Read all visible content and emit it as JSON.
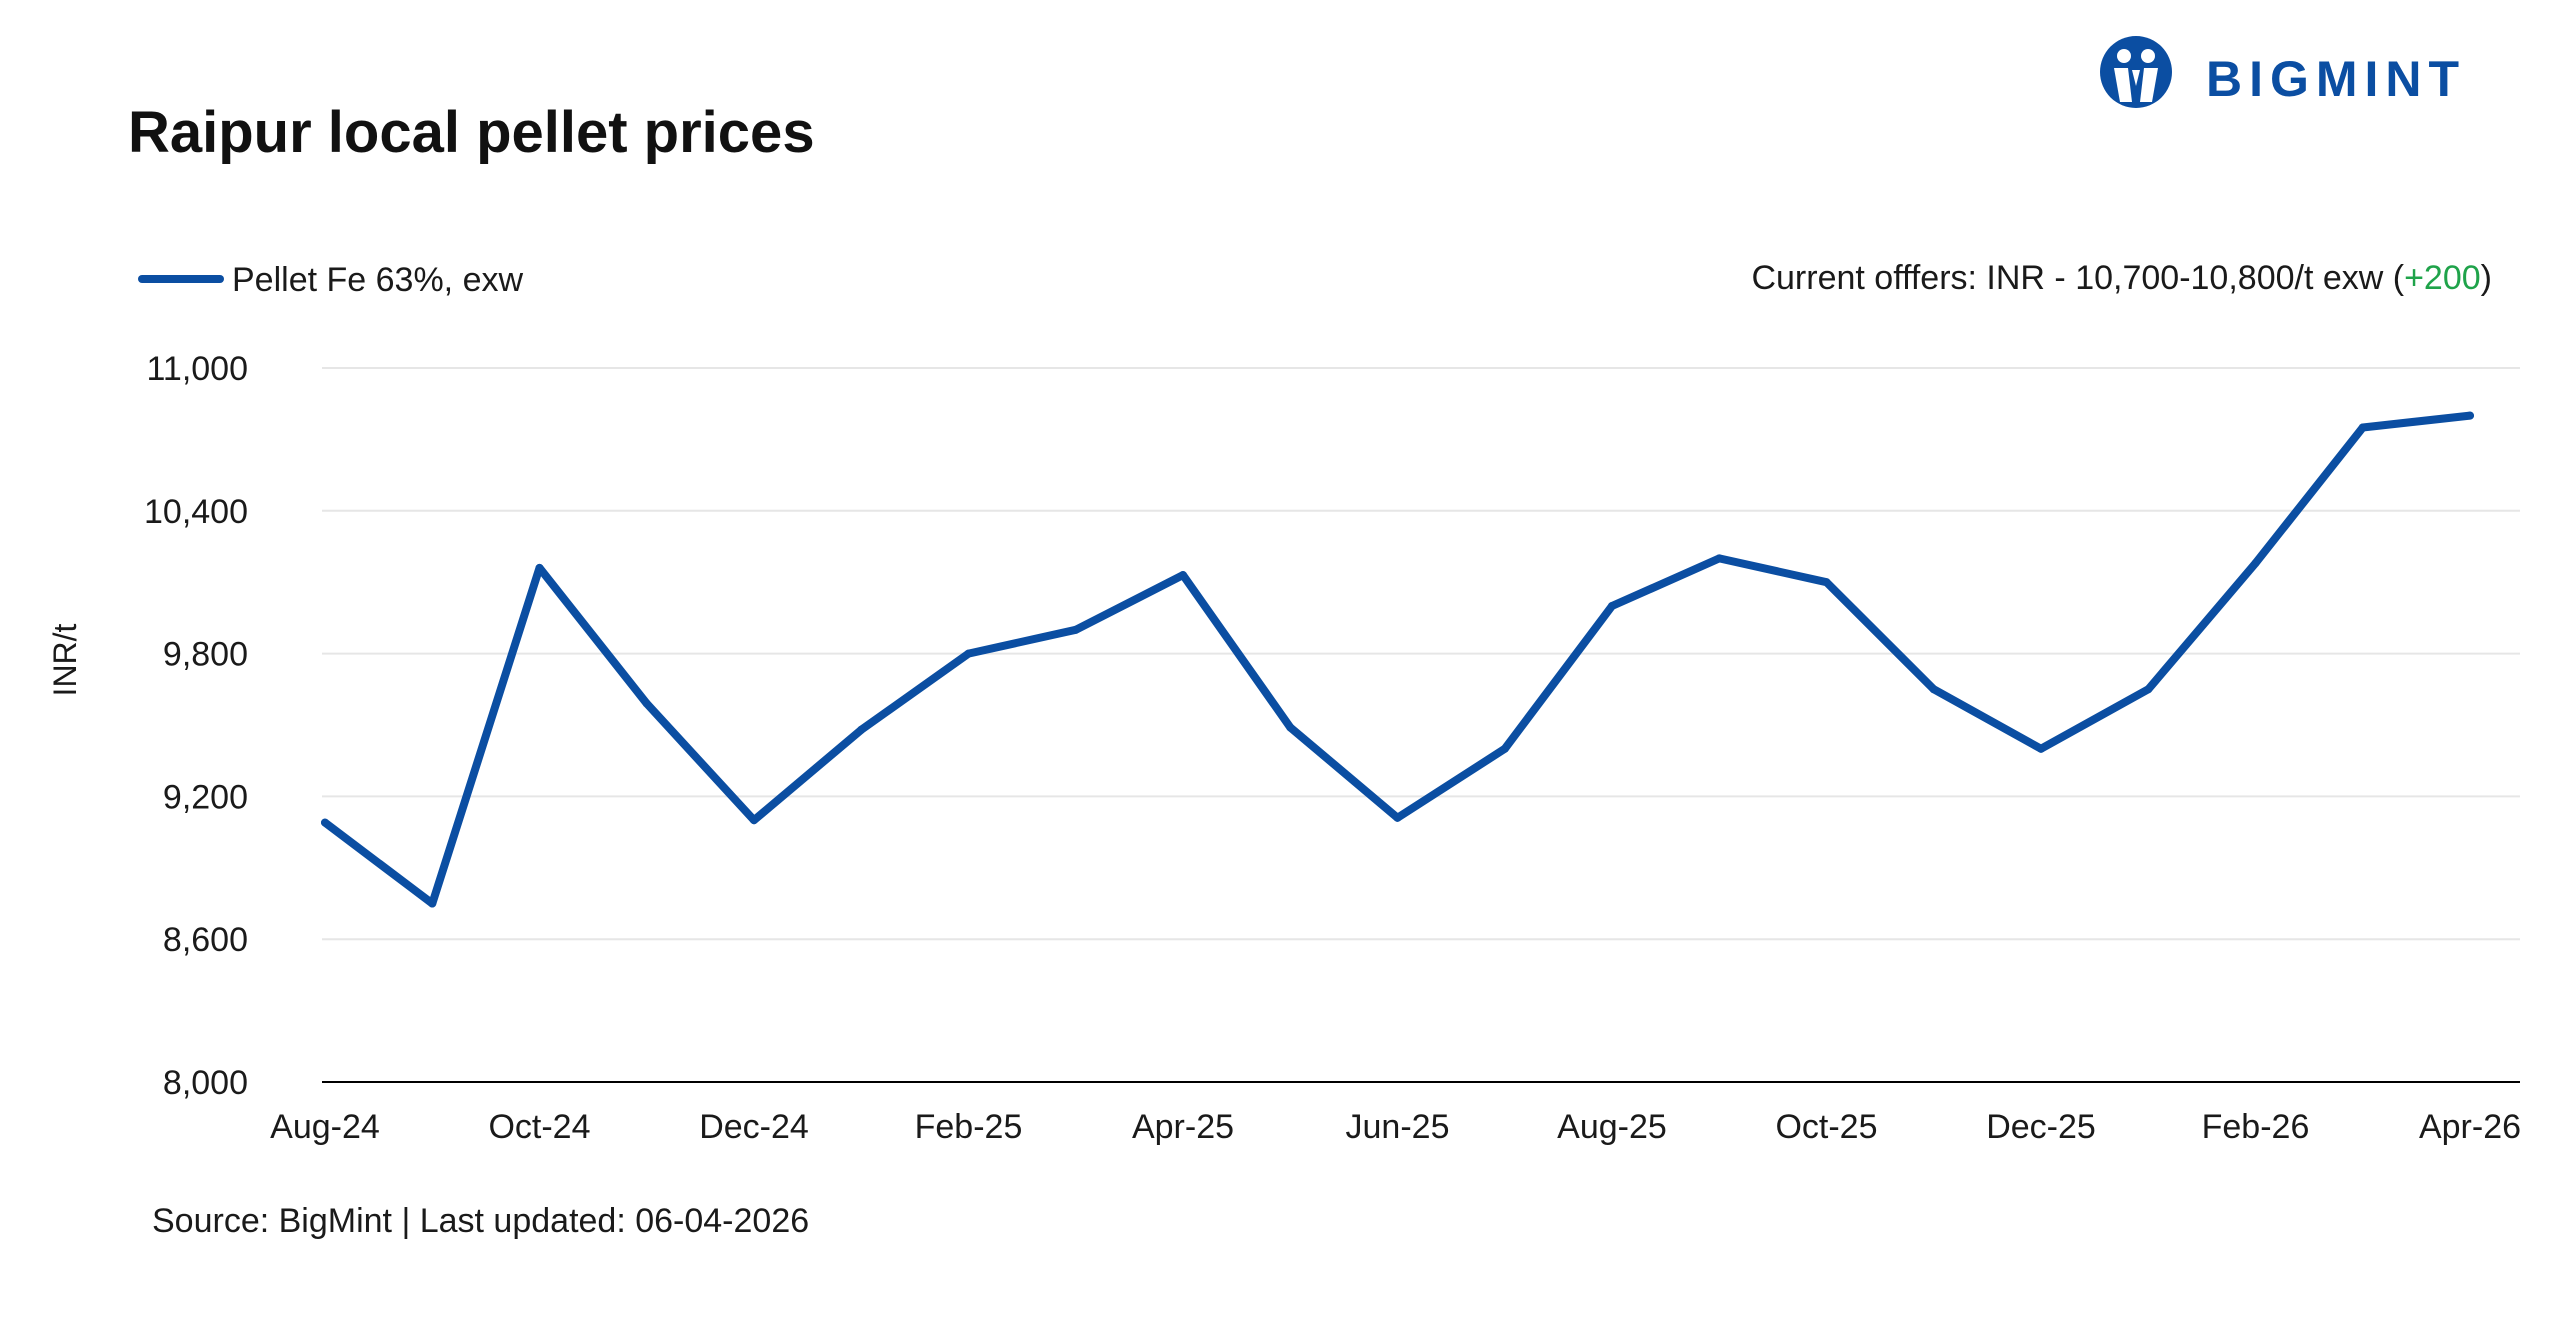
{
  "title": "Raipur local pellet prices",
  "logo": {
    "text": "BIGMINT",
    "icon": "bigmint-people-logo-icon",
    "color": "#0b4ea2"
  },
  "note": {
    "prefix": "Current offfers: INR - 10,700-10,800/t exw (",
    "change": "+200",
    "suffix": ")",
    "change_color": "#1fa34a"
  },
  "source": "Source: BigMint | Last updated: 06-04-2026",
  "chart_data": {
    "type": "line",
    "title": "Raipur local pellet prices",
    "xlabel": "",
    "ylabel": "INR/t",
    "ylim": [
      8000,
      11000
    ],
    "yticks": [
      8000,
      8600,
      9200,
      9800,
      10400,
      11000
    ],
    "ytick_labels": [
      "8,000",
      "8,600",
      "9,200",
      "9,800",
      "10,400",
      "11,000"
    ],
    "x": [
      "Aug-24",
      "Sep-24",
      "Oct-24",
      "Nov-24",
      "Dec-24",
      "Jan-25",
      "Feb-25",
      "Mar-25",
      "Apr-25",
      "May-25",
      "Jun-25",
      "Jul-25",
      "Aug-25",
      "Sep-25",
      "Oct-25",
      "Nov-25",
      "Dec-25",
      "Jan-26",
      "Feb-26",
      "Mar-26",
      "Apr-26"
    ],
    "xtick_labels": [
      "Aug-24",
      "",
      "Oct-24",
      "",
      "Dec-24",
      "",
      "Feb-25",
      "",
      "Apr-25",
      "",
      "Jun-25",
      "",
      "Aug-25",
      "",
      "Oct-25",
      "",
      "Dec-25",
      "",
      "Feb-26",
      "",
      "Apr-26"
    ],
    "grid": true,
    "legend_position": "top-left",
    "series": [
      {
        "name": "Pellet Fe 63%, exw",
        "color": "#0b4ea2",
        "values": [
          9090,
          8750,
          10160,
          9590,
          9100,
          9480,
          9800,
          9900,
          10130,
          9490,
          9110,
          9400,
          10000,
          10200,
          10100,
          9650,
          9400,
          9650,
          10180,
          10750,
          10800
        ]
      }
    ]
  }
}
